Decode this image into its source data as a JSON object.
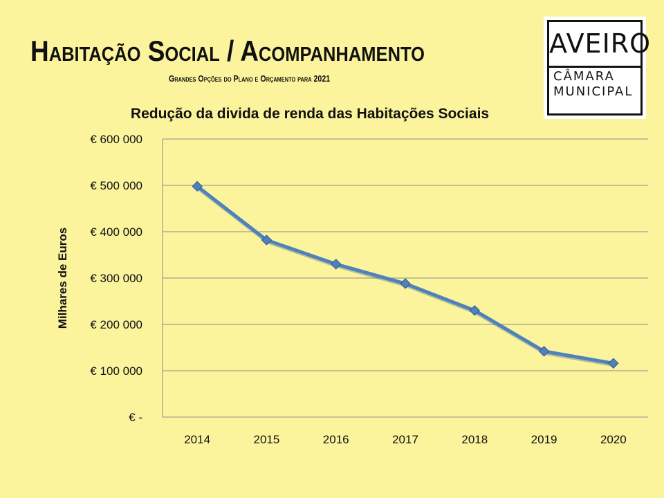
{
  "header": {
    "title": "Habitação Social / Acompanhamento",
    "subtitle": "Grandes Opções do Plano e Orçamento para 2021"
  },
  "logo": {
    "top_text": "AVEIRO",
    "bottom_line1": "CÂMARA",
    "bottom_line2": "MUNICIPAL"
  },
  "colors": {
    "background": "#FBF49C",
    "series": "#4F81BD",
    "grid": "#8C8C8C"
  },
  "chart_data": {
    "type": "line",
    "title": "Redução da divida de renda das Habitações Sociais",
    "ylabel": "Milhares de Euros",
    "xlabel": "",
    "categories": [
      "2014",
      "2015",
      "2016",
      "2017",
      "2018",
      "2019",
      "2020"
    ],
    "series": [
      {
        "name": "",
        "values": [
          498000,
          382000,
          330000,
          288000,
          230000,
          142000,
          116000
        ]
      }
    ],
    "ylim": [
      0,
      600000
    ],
    "yticks": [
      0,
      100000,
      200000,
      300000,
      400000,
      500000,
      600000
    ],
    "ytick_labels": [
      "€ -",
      "€ 100 000",
      "€ 200 000",
      "€ 300 000",
      "€ 400 000",
      "€ 500 000",
      "€ 600 000"
    ],
    "grid": true,
    "legend": "none",
    "marker": "diamond"
  }
}
